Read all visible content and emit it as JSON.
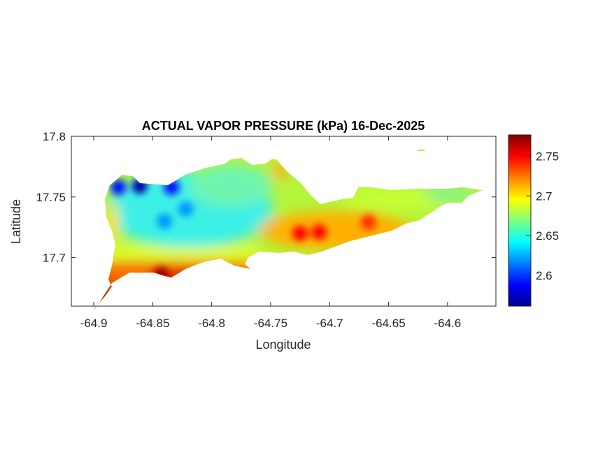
{
  "chart_data": {
    "type": "heatmap",
    "title": "ACTUAL VAPOR PRESSURE (kPa) 16-Dec-2025",
    "xlabel": "Longitude",
    "ylabel": "Latitude",
    "xlim": [
      -64.919,
      -64.559
    ],
    "ylim": [
      17.66,
      17.8
    ],
    "xticks": [
      -64.9,
      -64.85,
      -64.8,
      -64.75,
      -64.7,
      -64.65,
      -64.6
    ],
    "xtick_labels": [
      "-64.9",
      "-64.85",
      "-64.8",
      "-64.75",
      "-64.7",
      "-64.65",
      "-64.6"
    ],
    "yticks": [
      17.7,
      17.75,
      17.8
    ],
    "ytick_labels": [
      "17.7",
      "17.75",
      "17.8"
    ],
    "colormap": "jet",
    "clim": [
      2.561,
      2.777
    ],
    "colorbar_ticks": [
      2.6,
      2.65,
      2.7,
      2.75
    ],
    "colorbar_tick_labels": [
      "2.6",
      "2.65",
      "2.7",
      "2.75"
    ],
    "hotspots": [
      {
        "lon": -64.879,
        "lat": 17.758,
        "value": 2.59
      },
      {
        "lon": -64.861,
        "lat": 17.759,
        "value": 2.57
      },
      {
        "lon": -64.834,
        "lat": 17.758,
        "value": 2.59
      },
      {
        "lon": -64.84,
        "lat": 17.73,
        "value": 2.62
      },
      {
        "lon": -64.822,
        "lat": 17.74,
        "value": 2.62
      },
      {
        "lon": -64.725,
        "lat": 17.72,
        "value": 2.75
      },
      {
        "lon": -64.709,
        "lat": 17.721,
        "value": 2.75
      },
      {
        "lon": -64.667,
        "lat": 17.729,
        "value": 2.74
      },
      {
        "lon": -64.843,
        "lat": 17.686,
        "value": 2.77
      },
      {
        "lon": -64.9,
        "lat": 17.68,
        "value": 2.77
      }
    ]
  }
}
